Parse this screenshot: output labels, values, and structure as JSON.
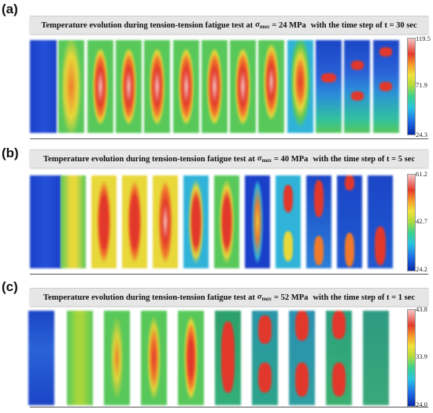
{
  "panels": [
    {
      "letter": "(a)",
      "title_prefix": "Temperature evolution during tension-tension fatigue test at",
      "sigma": "σ",
      "sigma_sub": "max",
      "stress": "= 24 MPa",
      "title_suffix": "with the time step of t = 30 sec",
      "colorbar": {
        "max": "119.5",
        "mid": "71.9",
        "min": "24.3"
      }
    },
    {
      "letter": "(b)",
      "title_prefix": "Temperature evolution during tension-tension fatigue test at",
      "sigma": "σ",
      "sigma_sub": "max",
      "stress": "= 40 MPa",
      "title_suffix": "with the time step of t = 5 sec",
      "colorbar": {
        "max": "61.2",
        "mid": "42.7",
        "min": "24.2"
      }
    },
    {
      "letter": "(c)",
      "title_prefix": "Temperature evolution during tension-tension fatigue test at",
      "sigma": "σ",
      "sigma_sub": "max",
      "stress": "= 52 MPa",
      "title_suffix": "with the time step of t = 1 sec",
      "colorbar": {
        "max": "43.8",
        "mid": "33.9",
        "min": "24.0"
      }
    }
  ],
  "colors": {
    "cold": "#1a3fc8",
    "cool": "#2fb3d8",
    "mid": "#58c85a",
    "warm": "#e8d83a",
    "hot": "#e2382b",
    "peak": "#f6c9c6"
  }
}
